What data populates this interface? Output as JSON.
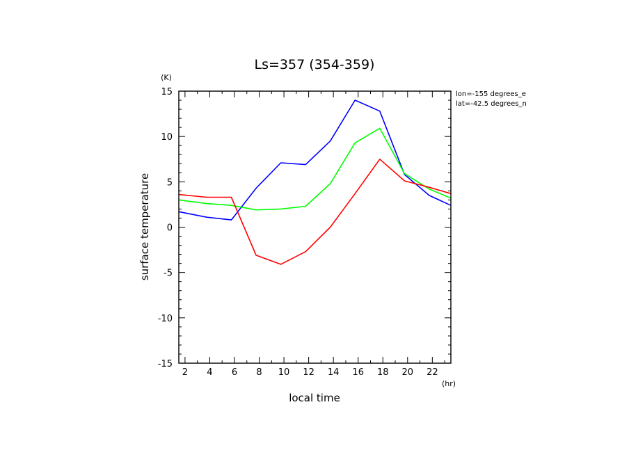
{
  "chart_data": {
    "type": "line",
    "title": "Ls=357 (354-359)",
    "xlabel": "local time",
    "ylabel": "surface temperature",
    "x_unit": "(hr)",
    "y_unit": "(K)",
    "annotations": [
      "lon=-155 degrees_e",
      "lat=-42.5 degrees_n"
    ],
    "xlim": [
      1.5,
      23.5
    ],
    "ylim": [
      -15,
      15
    ],
    "x_ticks": [
      2,
      4,
      6,
      8,
      10,
      12,
      14,
      16,
      18,
      20,
      22
    ],
    "y_ticks": [
      -15,
      -10,
      -5,
      0,
      5,
      10,
      15
    ],
    "x": [
      1.5,
      3.75,
      5.75,
      7.75,
      9.75,
      11.75,
      13.75,
      15.75,
      17.75,
      19.75,
      21.75,
      23.5
    ],
    "series": [
      {
        "color": "#0000ff",
        "values": [
          1.7,
          1.1,
          0.8,
          4.3,
          7.1,
          6.9,
          9.5,
          14.0,
          12.8,
          5.8,
          3.5,
          2.4
        ]
      },
      {
        "color": "#00ff00",
        "values": [
          3.0,
          2.6,
          2.4,
          1.9,
          2.0,
          2.3,
          4.8,
          9.3,
          10.9,
          5.9,
          4.2,
          3.2
        ]
      },
      {
        "color": "#ff0000",
        "values": [
          3.6,
          3.3,
          3.3,
          -3.1,
          -4.1,
          -2.7,
          0.0,
          3.7,
          7.5,
          5.1,
          4.4,
          3.7
        ]
      }
    ]
  }
}
